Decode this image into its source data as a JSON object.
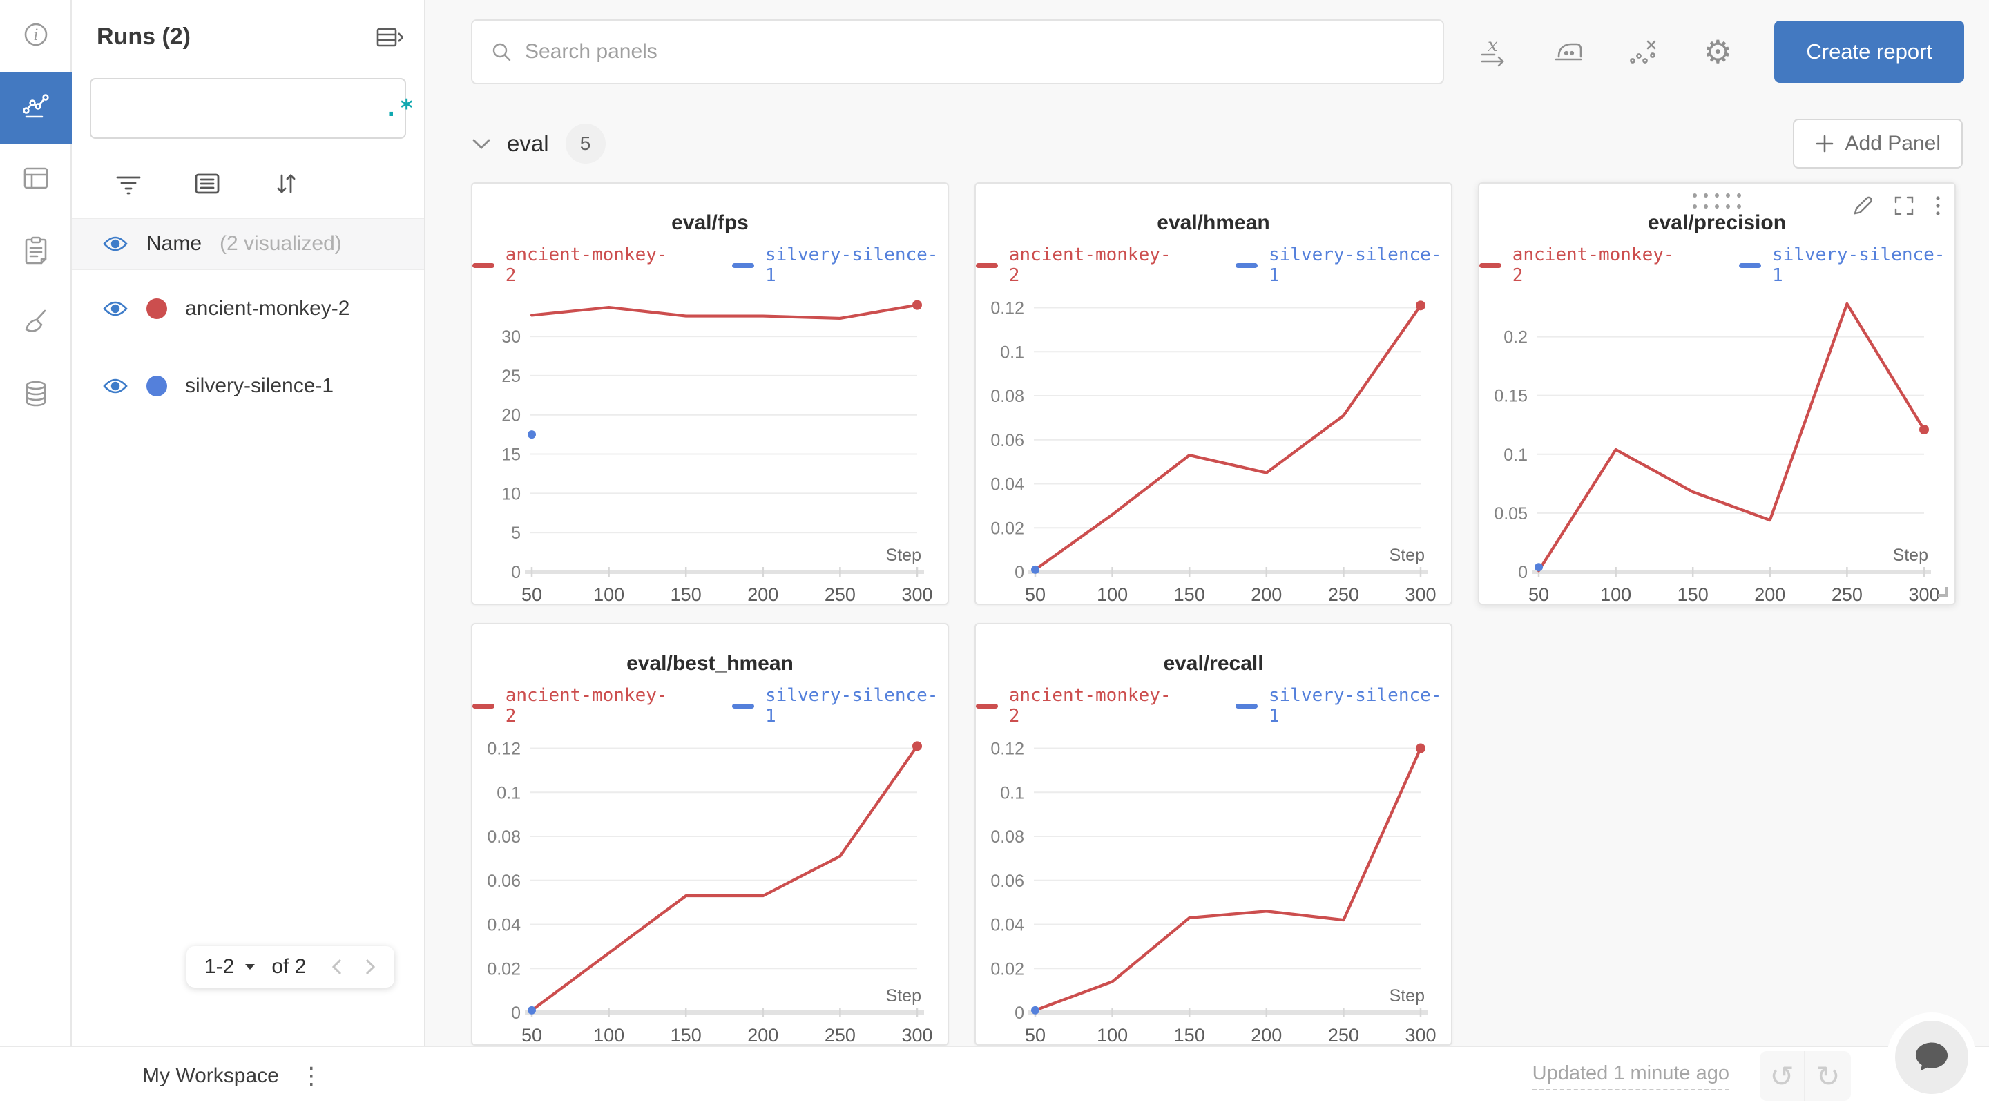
{
  "colors": {
    "accent_blue": "#4379C1",
    "run_red": "#CC4E4E",
    "run_blue": "#5480DB",
    "eye_blue": "#3E7CC9",
    "regex_teal": "#0FA8B0"
  },
  "icons": {
    "regex": ".*",
    "gear": "⚙",
    "undo": "↺",
    "redo": "↻",
    "kebab_v": "⋮"
  },
  "left_rail": {
    "items": [
      {
        "name": "info",
        "selected": false
      },
      {
        "name": "line-charts-workspace",
        "selected": true
      },
      {
        "name": "table",
        "selected": false
      },
      {
        "name": "logs",
        "selected": false
      },
      {
        "name": "sweeps",
        "selected": false
      },
      {
        "name": "artifacts",
        "selected": false
      }
    ]
  },
  "runs_sidebar": {
    "title": "Runs (2)",
    "search_placeholder": "",
    "header": {
      "label": "Name",
      "sublabel": "(2 visualized)"
    },
    "runs": [
      {
        "name": "ancient-monkey-2",
        "color": "#CC4E4E"
      },
      {
        "name": "silvery-silence-1",
        "color": "#5480DB"
      }
    ],
    "pagination": {
      "range": "1-2",
      "of_label": "of 2"
    }
  },
  "topbar": {
    "search_placeholder": "Search panels",
    "create_report_label": "Create report"
  },
  "section": {
    "name": "eval",
    "count": "5",
    "add_panel_label": "Add Panel"
  },
  "workspace_bar": {
    "title": "My Workspace",
    "updated": "Updated 1 minute ago"
  },
  "chart_data": [
    {
      "type": "line",
      "title": "eval/fps",
      "xlabel": "Step",
      "xlim": [
        50,
        300
      ],
      "ylim": [
        0,
        35.2
      ],
      "x_ticks": [
        50,
        100,
        150,
        200,
        250,
        300
      ],
      "y_ticks": [
        "0",
        "5",
        "10",
        "15",
        "20",
        "25",
        "30"
      ],
      "grid": true,
      "legend_position": "top",
      "hovered": false,
      "series": [
        {
          "name": "ancient-monkey-2",
          "color": "#CC4E4E",
          "x": [
            50,
            100,
            150,
            200,
            250,
            300
          ],
          "y": [
            32.7,
            33.7,
            32.6,
            32.6,
            32.3,
            34.0
          ],
          "end_dot": true,
          "dot_r": 7
        },
        {
          "name": "silvery-silence-1",
          "color": "#5480DB",
          "x": [
            50
          ],
          "y": [
            17.5
          ],
          "end_dot": true,
          "dot_r": 6
        }
      ]
    },
    {
      "type": "line",
      "title": "eval/hmean",
      "xlabel": "Step",
      "xlim": [
        50,
        300
      ],
      "ylim": [
        0,
        0.1255
      ],
      "x_ticks": [
        50,
        100,
        150,
        200,
        250,
        300
      ],
      "y_ticks": [
        "0",
        "0.02",
        "0.04",
        "0.06",
        "0.08",
        "0.1",
        "0.12"
      ],
      "grid": true,
      "legend_position": "top",
      "hovered": false,
      "series": [
        {
          "name": "ancient-monkey-2",
          "color": "#CC4E4E",
          "x": [
            50,
            100,
            150,
            200,
            250,
            300
          ],
          "y": [
            0.001,
            0.026,
            0.053,
            0.045,
            0.071,
            0.121
          ],
          "end_dot": true,
          "dot_r": 7
        },
        {
          "name": "silvery-silence-1",
          "color": "#5480DB",
          "x": [
            50
          ],
          "y": [
            0.001
          ],
          "end_dot": true,
          "dot_r": 6
        }
      ]
    },
    {
      "type": "line",
      "title": "eval/precision",
      "xlabel": "Step",
      "xlim": [
        50,
        300
      ],
      "ylim": [
        0,
        0.235
      ],
      "x_ticks": [
        50,
        100,
        150,
        200,
        250,
        300
      ],
      "y_ticks": [
        "0",
        "0.05",
        "0.1",
        "0.15",
        "0.2"
      ],
      "grid": true,
      "legend_position": "top",
      "hovered": true,
      "series": [
        {
          "name": "ancient-monkey-2",
          "color": "#CC4E4E",
          "x": [
            50,
            100,
            150,
            200,
            250,
            300
          ],
          "y": [
            0.001,
            0.104,
            0.068,
            0.044,
            0.228,
            0.121
          ],
          "end_dot": true,
          "dot_r": 7
        },
        {
          "name": "silvery-silence-1",
          "color": "#5480DB",
          "x": [
            50
          ],
          "y": [
            0.004
          ],
          "end_dot": true,
          "dot_r": 6
        }
      ]
    },
    {
      "type": "line",
      "title": "eval/best_hmean",
      "xlabel": "Step",
      "xlim": [
        50,
        300
      ],
      "ylim": [
        0,
        0.1255
      ],
      "x_ticks": [
        50,
        100,
        150,
        200,
        250,
        300
      ],
      "y_ticks": [
        "0",
        "0.02",
        "0.04",
        "0.06",
        "0.08",
        "0.1",
        "0.12"
      ],
      "grid": true,
      "legend_position": "top",
      "hovered": false,
      "series": [
        {
          "name": "ancient-monkey-2",
          "color": "#CC4E4E",
          "x": [
            50,
            100,
            150,
            200,
            250,
            300
          ],
          "y": [
            0.001,
            0.027,
            0.053,
            0.053,
            0.071,
            0.121
          ],
          "end_dot": true,
          "dot_r": 7
        },
        {
          "name": "silvery-silence-1",
          "color": "#5480DB",
          "x": [
            50
          ],
          "y": [
            0.001
          ],
          "end_dot": true,
          "dot_r": 6
        }
      ]
    },
    {
      "type": "line",
      "title": "eval/recall",
      "xlabel": "Step",
      "xlim": [
        50,
        300
      ],
      "ylim": [
        0,
        0.1255
      ],
      "x_ticks": [
        50,
        100,
        150,
        200,
        250,
        300
      ],
      "y_ticks": [
        "0",
        "0.02",
        "0.04",
        "0.06",
        "0.08",
        "0.1",
        "0.12"
      ],
      "grid": true,
      "legend_position": "top",
      "hovered": false,
      "series": [
        {
          "name": "ancient-monkey-2",
          "color": "#CC4E4E",
          "x": [
            50,
            100,
            150,
            200,
            250,
            300
          ],
          "y": [
            0.001,
            0.014,
            0.043,
            0.046,
            0.042,
            0.12
          ],
          "end_dot": true,
          "dot_r": 7
        },
        {
          "name": "silvery-silence-1",
          "color": "#5480DB",
          "x": [
            50
          ],
          "y": [
            0.001
          ],
          "end_dot": true,
          "dot_r": 6
        }
      ]
    }
  ]
}
